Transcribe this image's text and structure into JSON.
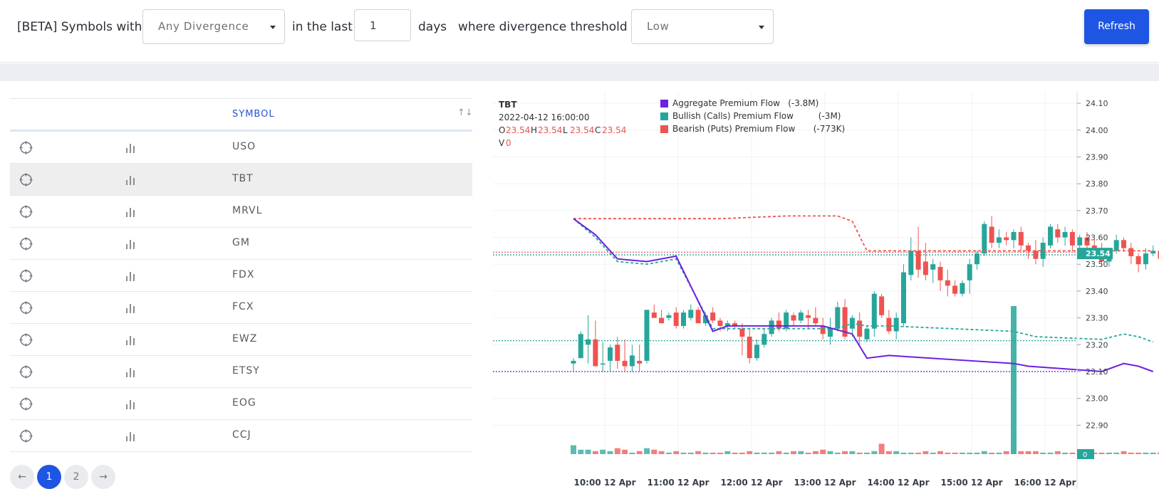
{
  "filter": {
    "prefix": "[BETA] Symbols with",
    "divergence_value": "Any Divergence",
    "in_last": "in the last",
    "days_value": "1",
    "days_label": "days",
    "threshold_label": "where divergence threshold is",
    "threshold_value": "Low",
    "refresh_label": "Refresh"
  },
  "table": {
    "symbol_header": "SYMBOL",
    "sort_glyph": "↑↓",
    "rows": [
      {
        "symbol": "USO"
      },
      {
        "symbol": "TBT"
      },
      {
        "symbol": "MRVL"
      },
      {
        "symbol": "GM"
      },
      {
        "symbol": "FDX"
      },
      {
        "symbol": "FCX"
      },
      {
        "symbol": "EWZ"
      },
      {
        "symbol": "ETSY"
      },
      {
        "symbol": "EOG"
      },
      {
        "symbol": "CCJ"
      }
    ],
    "selected_index": 1,
    "pagination": {
      "prev": "←",
      "pages": [
        "1",
        "2"
      ],
      "next": "→",
      "current": "1"
    }
  },
  "chart_data": {
    "type": "candlestick",
    "symbol": "TBT",
    "datetime": "2022-04-12 16:00:00",
    "ohlc_labels": {
      "o": "O",
      "h": "H",
      "l": "L",
      "c": "C",
      "v": "V"
    },
    "ohlc": {
      "o": "23.54",
      "h": "23.54",
      "l": "23.54",
      "c": "23.54",
      "v": "0"
    },
    "legend": [
      {
        "name": "Aggregate Premium Flow",
        "value": "(-3.8M)",
        "color": "#6b21e0"
      },
      {
        "name": "Bullish (Calls) Premium Flow",
        "value": "(-3M)",
        "color": "#26a69a"
      },
      {
        "name": "Bearish (Puts) Premium Flow",
        "value": "(-773K)",
        "color": "#ef5350"
      }
    ],
    "y_ticks": [
      "24.10",
      "24.00",
      "23.90",
      "23.80",
      "23.70",
      "23.60",
      "23.50",
      "23.40",
      "23.30",
      "23.20",
      "23.10",
      "23.00",
      "22.90"
    ],
    "ylim": [
      22.84,
      24.14
    ],
    "x_ticks": [
      "10:00 12 Apr",
      "11:00 12 Apr",
      "12:00 12 Apr",
      "13:00 12 Apr",
      "14:00 12 Apr",
      "15:00 12 Apr",
      "16:00 12 Apr"
    ],
    "last_price_label": "23.54",
    "volume_label": "0",
    "price_lines": [
      {
        "y": 23.545,
        "color": "#ef5350"
      },
      {
        "y": 23.535,
        "color": "#26a69a"
      },
      {
        "y": 23.215,
        "color": "#26a69a"
      },
      {
        "y": 23.1,
        "color": "#6b21e0"
      }
    ],
    "candles": [
      [
        23.13,
        23.15,
        23.1,
        23.14
      ],
      [
        23.15,
        23.25,
        23.15,
        23.24
      ],
      [
        23.2,
        23.31,
        23.13,
        23.22
      ],
      [
        23.22,
        23.29,
        23.12,
        23.12
      ],
      [
        23.13,
        23.21,
        23.1,
        23.13
      ],
      [
        23.14,
        23.2,
        23.1,
        23.19
      ],
      [
        23.2,
        23.23,
        23.11,
        23.14
      ],
      [
        23.14,
        23.22,
        23.1,
        23.12
      ],
      [
        23.12,
        23.2,
        23.1,
        23.16
      ],
      [
        23.14,
        23.2,
        23.1,
        23.13
      ],
      [
        23.14,
        23.33,
        23.13,
        23.33
      ],
      [
        23.32,
        23.35,
        23.3,
        23.3
      ],
      [
        23.3,
        23.33,
        23.28,
        23.28
      ],
      [
        23.3,
        23.32,
        23.29,
        23.31
      ],
      [
        23.32,
        23.34,
        23.26,
        23.27
      ],
      [
        23.27,
        23.33,
        23.26,
        23.32
      ],
      [
        23.3,
        23.35,
        23.29,
        23.33
      ],
      [
        23.33,
        23.34,
        23.28,
        23.28
      ],
      [
        23.28,
        23.32,
        23.27,
        23.31
      ],
      [
        23.32,
        23.34,
        23.28,
        23.29
      ],
      [
        23.29,
        23.3,
        23.25,
        23.27
      ],
      [
        23.27,
        23.29,
        23.25,
        23.28
      ],
      [
        23.28,
        23.29,
        23.26,
        23.27
      ],
      [
        23.26,
        23.28,
        23.16,
        23.23
      ],
      [
        23.23,
        23.26,
        23.13,
        23.15
      ],
      [
        23.15,
        23.22,
        23.14,
        23.2
      ],
      [
        23.2,
        23.26,
        23.19,
        23.24
      ],
      [
        23.24,
        23.3,
        23.23,
        23.29
      ],
      [
        23.29,
        23.32,
        23.25,
        23.26
      ],
      [
        23.26,
        23.33,
        23.25,
        23.32
      ],
      [
        23.31,
        23.32,
        23.27,
        23.29
      ],
      [
        23.29,
        23.33,
        23.28,
        23.32
      ],
      [
        23.31,
        23.33,
        23.26,
        23.3
      ],
      [
        23.3,
        23.34,
        23.27,
        23.28
      ],
      [
        23.27,
        23.3,
        23.22,
        23.24
      ],
      [
        23.23,
        23.3,
        23.2,
        23.26
      ],
      [
        23.26,
        23.36,
        23.25,
        23.34
      ],
      [
        23.34,
        23.37,
        23.22,
        23.23
      ],
      [
        23.26,
        23.31,
        23.23,
        23.3
      ],
      [
        23.29,
        23.32,
        23.2,
        23.23
      ],
      [
        23.22,
        23.27,
        23.21,
        23.26
      ],
      [
        23.26,
        23.4,
        23.23,
        23.39
      ],
      [
        23.38,
        23.39,
        23.3,
        23.31
      ],
      [
        23.3,
        23.33,
        23.24,
        23.25
      ],
      [
        23.25,
        23.32,
        23.22,
        23.3
      ],
      [
        23.28,
        23.5,
        23.27,
        23.47
      ],
      [
        23.46,
        23.6,
        23.44,
        23.55
      ],
      [
        23.55,
        23.64,
        23.45,
        23.48
      ],
      [
        23.51,
        23.58,
        23.44,
        23.46
      ],
      [
        23.48,
        23.52,
        23.43,
        23.5
      ],
      [
        23.49,
        23.51,
        23.4,
        23.44
      ],
      [
        23.44,
        23.48,
        23.38,
        23.42
      ],
      [
        23.42,
        23.44,
        23.38,
        23.39
      ],
      [
        23.39,
        23.44,
        23.38,
        23.43
      ],
      [
        23.44,
        23.52,
        23.39,
        23.5
      ],
      [
        23.5,
        23.55,
        23.48,
        23.54
      ],
      [
        23.54,
        23.66,
        23.53,
        23.65
      ],
      [
        23.64,
        23.68,
        23.56,
        23.58
      ],
      [
        23.58,
        23.63,
        23.56,
        23.6
      ],
      [
        23.6,
        23.62,
        23.57,
        23.59
      ],
      [
        23.59,
        23.63,
        23.56,
        23.62
      ],
      [
        23.62,
        23.64,
        23.55,
        23.57
      ],
      [
        23.57,
        23.58,
        23.52,
        23.55
      ],
      [
        23.55,
        23.59,
        23.5,
        23.52
      ],
      [
        23.52,
        23.6,
        23.49,
        23.58
      ],
      [
        23.57,
        23.65,
        23.56,
        23.64
      ],
      [
        23.63,
        23.65,
        23.58,
        23.6
      ],
      [
        23.6,
        23.64,
        23.57,
        23.62
      ],
      [
        23.62,
        23.63,
        23.55,
        23.57
      ],
      [
        23.57,
        23.61,
        23.55,
        23.6
      ],
      [
        23.6,
        23.62,
        23.55,
        23.57
      ],
      [
        23.57,
        23.59,
        23.52,
        23.56
      ],
      [
        23.56,
        23.58,
        23.49,
        23.51
      ],
      [
        23.51,
        23.56,
        23.49,
        23.55
      ],
      [
        23.55,
        23.61,
        23.54,
        23.59
      ],
      [
        23.59,
        23.6,
        23.55,
        23.56
      ],
      [
        23.56,
        23.58,
        23.5,
        23.53
      ],
      [
        23.53,
        23.54,
        23.47,
        23.5
      ],
      [
        23.5,
        23.56,
        23.48,
        23.54
      ],
      [
        23.54,
        23.57,
        23.53,
        23.55
      ],
      [
        23.55,
        23.57,
        23.51,
        23.52
      ],
      [
        23.52,
        23.54,
        23.49,
        23.51
      ],
      [
        23.51,
        23.56,
        23.5,
        23.55
      ],
      [
        23.55,
        23.56,
        23.51,
        23.51
      ],
      [
        23.51,
        23.59,
        23.5,
        23.54
      ]
    ],
    "volume": [
      6,
      3,
      3,
      2,
      3,
      2,
      4,
      3,
      1,
      2,
      4,
      3,
      2,
      1,
      2,
      1,
      1,
      2,
      1,
      1,
      1,
      2,
      1,
      1,
      2,
      1,
      1,
      1,
      2,
      1,
      2,
      2,
      1,
      2,
      3,
      2,
      1,
      2,
      2,
      1,
      1,
      2,
      7,
      2,
      2,
      1,
      1,
      1,
      2,
      1,
      2,
      1,
      1,
      1,
      1,
      1,
      2,
      1,
      1,
      2,
      100,
      2,
      2,
      2,
      1,
      1,
      2,
      1,
      1,
      1,
      2,
      1,
      1,
      1,
      1,
      2,
      1,
      1,
      1,
      1,
      1,
      2,
      1,
      1,
      4
    ],
    "aggregate_flow": [
      [
        0,
        23.67
      ],
      [
        3,
        23.61
      ],
      [
        6,
        23.52
      ],
      [
        10,
        23.51
      ],
      [
        14,
        23.53
      ],
      [
        19,
        23.25
      ],
      [
        21,
        23.27
      ],
      [
        32,
        23.27
      ],
      [
        34,
        23.27
      ],
      [
        38,
        23.24
      ],
      [
        40,
        23.15
      ],
      [
        43,
        23.16
      ],
      [
        60,
        23.13
      ],
      [
        62,
        23.12
      ],
      [
        72,
        23.1
      ],
      [
        75,
        23.13
      ],
      [
        77,
        23.12
      ],
      [
        79,
        23.1
      ]
    ],
    "bullish_flow": [
      [
        0,
        23.67
      ],
      [
        3,
        23.6
      ],
      [
        6,
        23.51
      ],
      [
        10,
        23.5
      ],
      [
        14,
        23.52
      ],
      [
        19,
        23.26
      ],
      [
        21,
        23.26
      ],
      [
        32,
        23.26
      ],
      [
        36,
        23.26
      ],
      [
        38,
        23.28
      ],
      [
        40,
        23.27
      ],
      [
        43,
        23.27
      ],
      [
        60,
        23.25
      ],
      [
        63,
        23.23
      ],
      [
        72,
        23.22
      ],
      [
        75,
        23.24
      ],
      [
        77,
        23.23
      ],
      [
        79,
        23.21
      ]
    ],
    "bearish_flow": [
      [
        0,
        23.67
      ],
      [
        20,
        23.67
      ],
      [
        29,
        23.68
      ],
      [
        36,
        23.68
      ],
      [
        38,
        23.66
      ],
      [
        40,
        23.55
      ],
      [
        43,
        23.55
      ],
      [
        79,
        23.55
      ]
    ]
  }
}
